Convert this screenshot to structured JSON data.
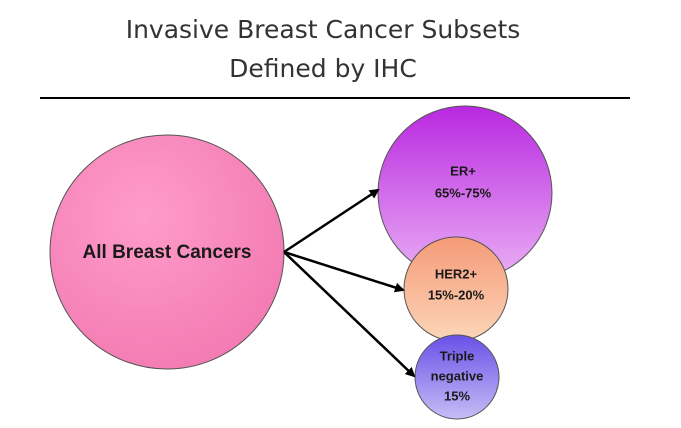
{
  "header": {
    "title": [
      "Invasive Breast Cancer Subsets",
      "Defined by IHC"
    ]
  },
  "nodes": [
    {
      "label": [
        "All Breast Cancers"
      ]
    },
    {
      "label": [
        "ER+",
        "65%-75%"
      ]
    },
    {
      "label": [
        "HER2+",
        "15%-20%"
      ]
    },
    {
      "label": [
        "Triple",
        "negative",
        "15%"
      ]
    }
  ]
}
